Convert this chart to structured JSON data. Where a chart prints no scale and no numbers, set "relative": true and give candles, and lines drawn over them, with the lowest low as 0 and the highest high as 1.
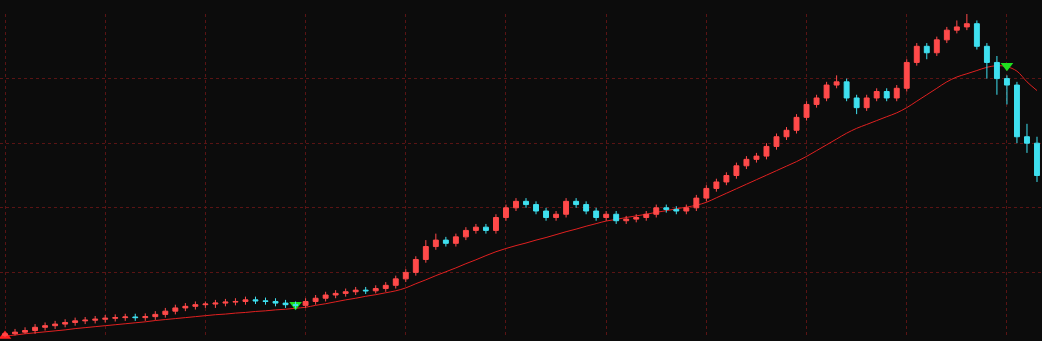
{
  "chart_data": {
    "type": "candlestick",
    "relative": true,
    "grid": true,
    "categories": [
      null,
      null,
      null,
      null,
      null,
      null,
      null,
      null,
      null,
      null,
      null,
      null,
      null,
      null,
      null,
      null,
      null,
      null,
      null,
      null,
      null,
      null,
      null,
      null,
      null,
      null,
      null,
      null,
      null,
      null,
      null,
      null,
      null,
      null,
      null,
      null,
      null,
      null,
      null,
      null,
      null,
      null,
      null,
      null,
      null,
      null,
      null,
      null,
      null,
      null,
      null,
      null,
      null,
      null,
      null,
      null,
      null,
      null,
      null,
      null,
      null,
      null,
      null,
      null,
      null,
      null,
      null,
      null,
      null,
      null,
      null,
      null,
      null,
      null,
      null,
      null,
      null,
      null,
      null,
      null,
      null,
      null,
      null,
      null,
      null,
      null,
      null,
      null,
      null,
      null,
      null,
      null,
      null,
      null,
      null,
      null,
      null,
      null,
      null,
      null,
      null,
      null,
      null,
      null
    ],
    "ohlc": [
      [
        0.005,
        0.015,
        0,
        0.01
      ],
      [
        0.01,
        0.025,
        0.005,
        0.015
      ],
      [
        0.015,
        0.03,
        0.01,
        0.02
      ],
      [
        0.02,
        0.04,
        0.01,
        0.03
      ],
      [
        0.03,
        0.045,
        0.02,
        0.035
      ],
      [
        0.035,
        0.05,
        0.025,
        0.04
      ],
      [
        0.04,
        0.055,
        0.03,
        0.045
      ],
      [
        0.045,
        0.06,
        0.035,
        0.05
      ],
      [
        0.05,
        0.062,
        0.04,
        0.052
      ],
      [
        0.052,
        0.065,
        0.042,
        0.055
      ],
      [
        0.055,
        0.068,
        0.045,
        0.058
      ],
      [
        0.058,
        0.07,
        0.048,
        0.06
      ],
      [
        0.06,
        0.072,
        0.05,
        0.062
      ],
      [
        0.062,
        0.072,
        0.05,
        0.06
      ],
      [
        0.06,
        0.073,
        0.05,
        0.063
      ],
      [
        0.063,
        0.08,
        0.053,
        0.07
      ],
      [
        0.07,
        0.09,
        0.06,
        0.08
      ],
      [
        0.08,
        0.1,
        0.07,
        0.09
      ],
      [
        0.09,
        0.105,
        0.08,
        0.095
      ],
      [
        0.095,
        0.11,
        0.085,
        0.1
      ],
      [
        0.1,
        0.11,
        0.09,
        0.102
      ],
      [
        0.102,
        0.115,
        0.09,
        0.105
      ],
      [
        0.105,
        0.118,
        0.095,
        0.108
      ],
      [
        0.108,
        0.12,
        0.098,
        0.11
      ],
      [
        0.11,
        0.125,
        0.1,
        0.115
      ],
      [
        0.115,
        0.125,
        0.102,
        0.112
      ],
      [
        0.112,
        0.122,
        0.1,
        0.11
      ],
      [
        0.11,
        0.12,
        0.095,
        0.105
      ],
      [
        0.105,
        0.115,
        0.09,
        0.1
      ],
      [
        0.1,
        0.11,
        0.088,
        0.098
      ],
      [
        0.098,
        0.12,
        0.09,
        0.11
      ],
      [
        0.11,
        0.13,
        0.1,
        0.12
      ],
      [
        0.12,
        0.14,
        0.11,
        0.13
      ],
      [
        0.13,
        0.145,
        0.12,
        0.135
      ],
      [
        0.135,
        0.15,
        0.125,
        0.14
      ],
      [
        0.14,
        0.155,
        0.13,
        0.145
      ],
      [
        0.145,
        0.155,
        0.133,
        0.143
      ],
      [
        0.143,
        0.16,
        0.135,
        0.15
      ],
      [
        0.15,
        0.17,
        0.14,
        0.16
      ],
      [
        0.16,
        0.19,
        0.15,
        0.18
      ],
      [
        0.18,
        0.21,
        0.17,
        0.2
      ],
      [
        0.2,
        0.25,
        0.19,
        0.24
      ],
      [
        0.24,
        0.3,
        0.23,
        0.28
      ],
      [
        0.28,
        0.32,
        0.27,
        0.3
      ],
      [
        0.3,
        0.31,
        0.28,
        0.29
      ],
      [
        0.29,
        0.32,
        0.28,
        0.31
      ],
      [
        0.31,
        0.34,
        0.3,
        0.33
      ],
      [
        0.33,
        0.35,
        0.32,
        0.34
      ],
      [
        0.34,
        0.35,
        0.32,
        0.33
      ],
      [
        0.33,
        0.38,
        0.32,
        0.37
      ],
      [
        0.37,
        0.41,
        0.36,
        0.4
      ],
      [
        0.4,
        0.43,
        0.39,
        0.42
      ],
      [
        0.42,
        0.43,
        0.4,
        0.41
      ],
      [
        0.41,
        0.42,
        0.38,
        0.39
      ],
      [
        0.39,
        0.4,
        0.36,
        0.37
      ],
      [
        0.37,
        0.39,
        0.36,
        0.38
      ],
      [
        0.38,
        0.43,
        0.37,
        0.42
      ],
      [
        0.42,
        0.43,
        0.4,
        0.41
      ],
      [
        0.41,
        0.42,
        0.38,
        0.39
      ],
      [
        0.39,
        0.4,
        0.36,
        0.37
      ],
      [
        0.37,
        0.39,
        0.36,
        0.38
      ],
      [
        0.38,
        0.39,
        0.35,
        0.36
      ],
      [
        0.36,
        0.375,
        0.35,
        0.365
      ],
      [
        0.365,
        0.38,
        0.355,
        0.37
      ],
      [
        0.37,
        0.39,
        0.36,
        0.38
      ],
      [
        0.38,
        0.41,
        0.37,
        0.4
      ],
      [
        0.4,
        0.41,
        0.385,
        0.395
      ],
      [
        0.395,
        0.405,
        0.38,
        0.39
      ],
      [
        0.39,
        0.41,
        0.38,
        0.4
      ],
      [
        0.4,
        0.44,
        0.39,
        0.43
      ],
      [
        0.43,
        0.47,
        0.42,
        0.46
      ],
      [
        0.46,
        0.49,
        0.45,
        0.48
      ],
      [
        0.48,
        0.51,
        0.47,
        0.5
      ],
      [
        0.5,
        0.54,
        0.49,
        0.53
      ],
      [
        0.53,
        0.56,
        0.52,
        0.55
      ],
      [
        0.55,
        0.57,
        0.54,
        0.56
      ],
      [
        0.56,
        0.6,
        0.55,
        0.59
      ],
      [
        0.59,
        0.63,
        0.58,
        0.62
      ],
      [
        0.62,
        0.65,
        0.61,
        0.64
      ],
      [
        0.64,
        0.69,
        0.63,
        0.68
      ],
      [
        0.68,
        0.73,
        0.67,
        0.72
      ],
      [
        0.72,
        0.75,
        0.71,
        0.74
      ],
      [
        0.74,
        0.79,
        0.73,
        0.78
      ],
      [
        0.78,
        0.81,
        0.77,
        0.79
      ],
      [
        0.79,
        0.8,
        0.73,
        0.74
      ],
      [
        0.74,
        0.75,
        0.69,
        0.71
      ],
      [
        0.71,
        0.75,
        0.7,
        0.74
      ],
      [
        0.74,
        0.77,
        0.73,
        0.76
      ],
      [
        0.76,
        0.77,
        0.73,
        0.74
      ],
      [
        0.74,
        0.78,
        0.73,
        0.77
      ],
      [
        0.77,
        0.86,
        0.76,
        0.85
      ],
      [
        0.85,
        0.91,
        0.84,
        0.9
      ],
      [
        0.9,
        0.91,
        0.86,
        0.88
      ],
      [
        0.88,
        0.93,
        0.87,
        0.92
      ],
      [
        0.92,
        0.96,
        0.91,
        0.95
      ],
      [
        0.95,
        0.98,
        0.94,
        0.96
      ],
      [
        0.96,
        1,
        0.95,
        0.97
      ],
      [
        0.97,
        0.98,
        0.89,
        0.9
      ],
      [
        0.9,
        0.91,
        0.8,
        0.85
      ],
      [
        0.85,
        0.87,
        0.75,
        0.8
      ],
      [
        0.8,
        0.81,
        0.72,
        0.78
      ],
      [
        0.78,
        0.79,
        0.6,
        0.62
      ],
      [
        0.62,
        0.66,
        0.57,
        0.6
      ],
      [
        0.6,
        0.62,
        0.48,
        0.5
      ]
    ],
    "series": [
      {
        "type": "line",
        "color": "#e02020",
        "values": [
          0.003,
          0.006,
          0.01,
          0.013,
          0.016,
          0.019,
          0.022,
          0.026,
          0.029,
          0.032,
          0.035,
          0.038,
          0.041,
          0.044,
          0.047,
          0.051,
          0.054,
          0.057,
          0.06,
          0.063,
          0.066,
          0.069,
          0.071,
          0.074,
          0.076,
          0.079,
          0.081,
          0.084,
          0.086,
          0.089,
          0.092,
          0.098,
          0.103,
          0.109,
          0.115,
          0.12,
          0.126,
          0.131,
          0.137,
          0.143,
          0.152,
          0.165,
          0.177,
          0.19,
          0.202,
          0.214,
          0.227,
          0.239,
          0.252,
          0.264,
          0.274,
          0.283,
          0.291,
          0.3,
          0.308,
          0.317,
          0.326,
          0.334,
          0.343,
          0.351,
          0.359,
          0.364,
          0.37,
          0.375,
          0.38,
          0.386,
          0.391,
          0.397,
          0.402,
          0.408,
          0.417,
          0.431,
          0.445,
          0.459,
          0.473,
          0.487,
          0.501,
          0.515,
          0.529,
          0.543,
          0.559,
          0.577,
          0.595,
          0.613,
          0.631,
          0.646,
          0.658,
          0.67,
          0.682,
          0.694,
          0.71,
          0.73,
          0.75,
          0.77,
          0.79,
          0.805,
          0.815,
          0.825,
          0.835,
          0.84,
          0.837,
          0.823,
          0.79,
          0.763
        ]
      },
      {
        "type": "scatter",
        "marker": "triangle",
        "color": "#ff2020",
        "values": [
          0.003,
          null,
          null,
          null,
          null,
          null,
          null,
          null,
          null,
          null,
          null,
          null,
          null,
          null,
          null,
          null,
          null,
          null,
          null,
          null,
          null,
          null,
          null,
          null,
          null,
          null,
          null,
          null,
          null,
          null,
          null,
          null,
          null,
          null,
          null,
          null,
          null,
          null,
          null,
          null,
          null,
          null,
          null,
          null,
          null,
          null,
          null,
          null,
          null,
          null,
          null,
          null,
          null,
          null,
          null,
          null,
          null,
          null,
          null,
          null,
          null,
          null,
          null,
          null,
          null,
          null,
          null,
          null,
          null,
          null,
          null,
          null,
          null,
          null,
          null,
          null,
          null,
          null,
          null,
          null,
          null,
          null,
          null,
          null,
          null,
          null,
          null,
          null,
          null,
          null,
          null,
          null,
          null,
          null,
          null,
          null,
          null,
          null,
          null,
          null,
          null,
          null,
          null,
          null
        ]
      },
      {
        "type": "scatter",
        "marker": "triangle-down",
        "color": "#20e020",
        "values": [
          null,
          null,
          null,
          null,
          null,
          null,
          null,
          null,
          null,
          null,
          null,
          null,
          null,
          null,
          null,
          null,
          null,
          null,
          null,
          null,
          null,
          null,
          null,
          null,
          null,
          null,
          null,
          null,
          null,
          0.1,
          null,
          null,
          null,
          null,
          null,
          null,
          null,
          null,
          null,
          null,
          null,
          null,
          null,
          null,
          null,
          null,
          null,
          null,
          null,
          null,
          null,
          null,
          null,
          null,
          null,
          null,
          null,
          null,
          null,
          null,
          null,
          null,
          null,
          null,
          null,
          null,
          null,
          null,
          null,
          null,
          null,
          null,
          null,
          null,
          null,
          null,
          null,
          null,
          null,
          null,
          null,
          null,
          null,
          null,
          null,
          null,
          null,
          null,
          null,
          null,
          null,
          null,
          null,
          null,
          null,
          null,
          null,
          null,
          null,
          null,
          0.84,
          null,
          null,
          null
        ]
      }
    ]
  }
}
